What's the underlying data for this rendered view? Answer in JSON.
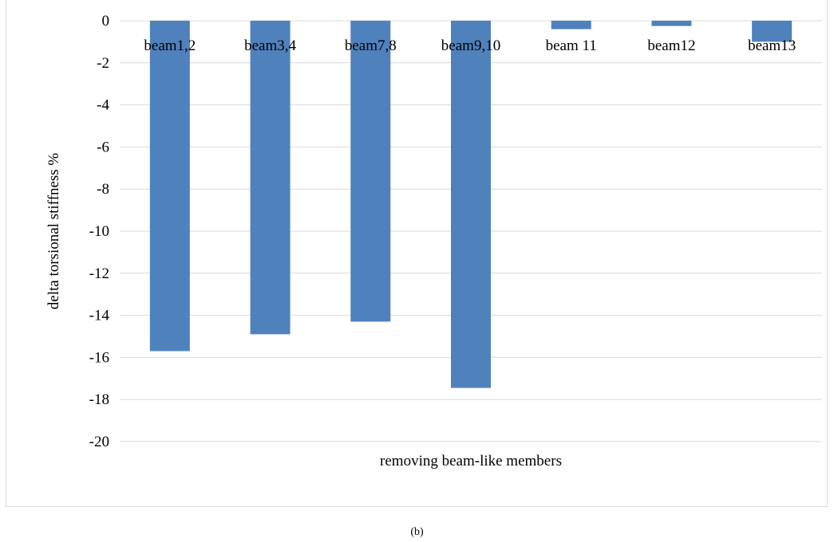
{
  "chart_data": {
    "type": "bar",
    "categories": [
      "beam1,2",
      "beam3,4",
      "beam7,8",
      "beam9,10",
      "beam 11",
      "beam12",
      "beam13"
    ],
    "values": [
      -15.7,
      -14.9,
      -14.3,
      -17.45,
      -0.4,
      -0.25,
      -1.0
    ],
    "xlabel": "removing beam-like members",
    "ylabel": "delta torsional stiffness %",
    "ylim": [
      -20,
      0
    ],
    "yticks": [
      0,
      -2,
      -4,
      -6,
      -8,
      -10,
      -12,
      -14,
      -16,
      -18,
      -20
    ],
    "grid": true,
    "bar_color": "#4f81bd",
    "grid_color": "#d9d9d9"
  },
  "caption": "(b)"
}
